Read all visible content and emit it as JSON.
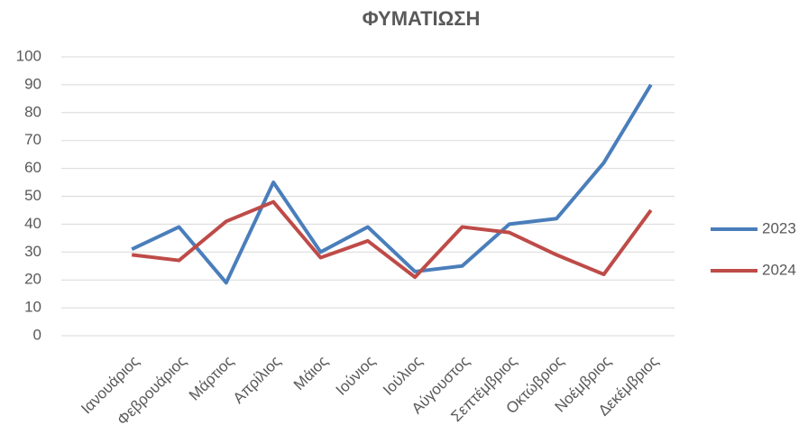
{
  "chart_data": {
    "type": "line",
    "title": "ΦΥΜΑΤΙΩΣΗ",
    "categories": [
      "Ιανουάριος",
      "Φεβρουάριος",
      "Μάρτιος",
      "Απρίλιος",
      "Μάιος",
      "Ιούνιος",
      "Ιούλιος",
      "Αύγουστος",
      "Σεπτέμβριος",
      "Οκτώβριος",
      "Νοέμβριος",
      "Δεκέμβριος"
    ],
    "series": [
      {
        "name": "2023",
        "color": "#4a7ebb",
        "values": [
          31,
          39,
          19,
          55,
          30,
          39,
          23,
          25,
          40,
          42,
          62,
          90
        ]
      },
      {
        "name": "2024",
        "color": "#be4b48",
        "values": [
          29,
          27,
          41,
          48,
          28,
          34,
          21,
          39,
          37,
          29,
          22,
          45
        ]
      }
    ],
    "ylim": [
      0,
      100
    ],
    "yticks": [
      0,
      10,
      20,
      30,
      40,
      50,
      60,
      70,
      80,
      90,
      100
    ],
    "grid": true,
    "legend": "right"
  }
}
